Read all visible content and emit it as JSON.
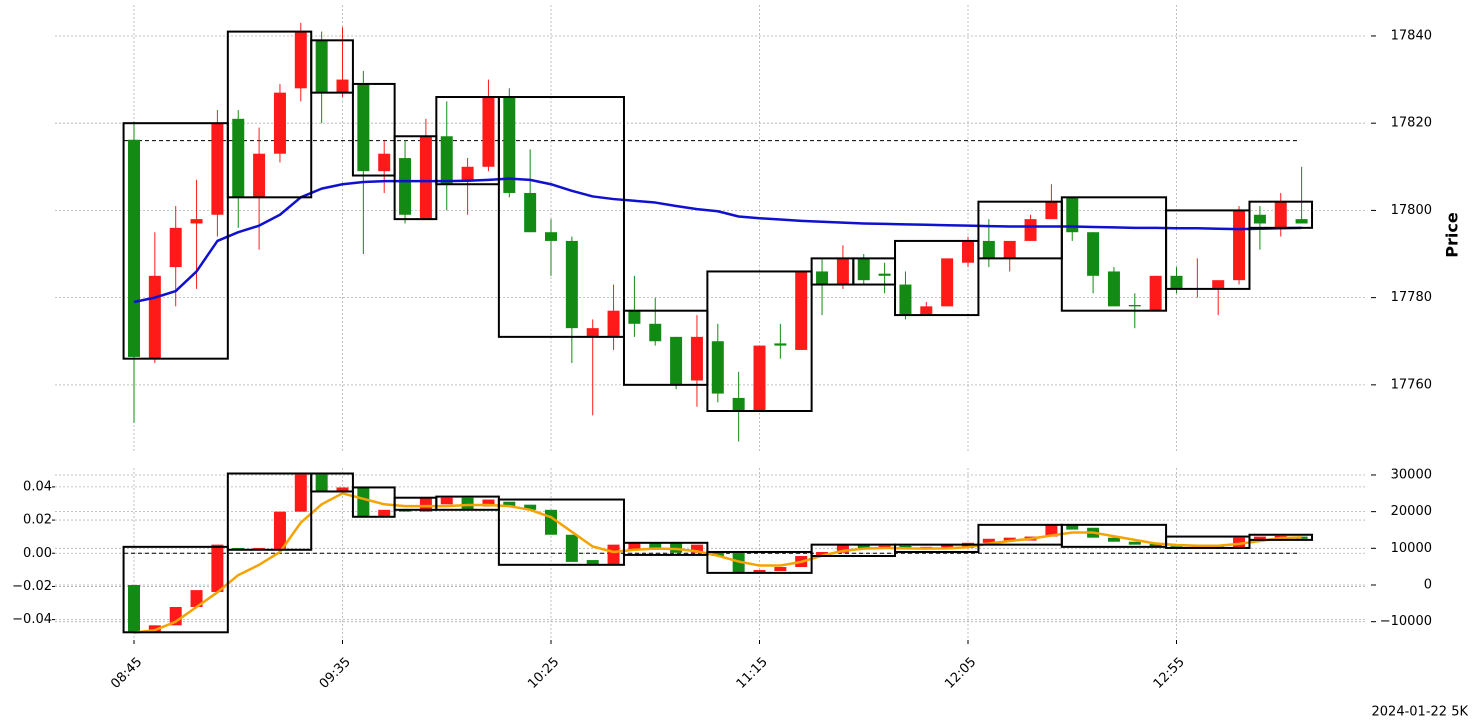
{
  "footnote": "2024-01-22 5K",
  "chart_data": [
    {
      "type": "candlestick",
      "ylabel": "Price",
      "grid": true,
      "y_axis_side": "right",
      "ylim": [
        17744.6,
        17847.1
      ],
      "yticks": [
        17760,
        17780,
        17800,
        17820,
        17840
      ],
      "up_color": "#ff1a1a",
      "down_color": "#138a13",
      "open": [
        17816.2,
        17766,
        17787,
        17797,
        17799,
        17821,
        17803,
        17813,
        17828,
        17839,
        17827,
        17829,
        17809,
        17812,
        17798,
        17817,
        17807,
        17810,
        17826,
        17804,
        17795,
        17793,
        17771,
        17771,
        17777,
        17774,
        17771,
        17761,
        17770,
        17757,
        17754,
        17769.5,
        17768,
        17786,
        17783,
        17789,
        17785.5,
        17783,
        17776,
        17778,
        17788,
        17793,
        17789,
        17793,
        17798,
        17803,
        17795,
        17786,
        17778.3,
        17777,
        17785,
        17782,
        17782,
        17784,
        17799,
        17796,
        17798
      ],
      "high": [
        17820.3,
        17795,
        17801,
        17807,
        17823,
        17823,
        17819,
        17829,
        17843,
        17841,
        17842,
        17832,
        17816,
        17816,
        17821,
        17825,
        17812,
        17830,
        17828,
        17814,
        17798,
        17794,
        17775,
        17783,
        17785,
        17780,
        17771,
        17776,
        17774,
        17763,
        17769,
        17774,
        17786,
        17789,
        17792,
        17790,
        17788,
        17786,
        17779,
        17789,
        17794,
        17798,
        17793,
        17799,
        17806,
        17803,
        17795,
        17787,
        17781,
        17785,
        17787,
        17789,
        17784,
        17801,
        17801,
        17804,
        17810
      ],
      "low": [
        17751.3,
        17765,
        17778,
        17782,
        17794,
        17796,
        17791,
        17811,
        17825,
        17820,
        17826,
        17790,
        17804,
        17797,
        17798,
        17800,
        17799,
        17809,
        17803,
        17795,
        17785,
        17765,
        17753,
        17768,
        17771,
        17769,
        17759,
        17755,
        17756,
        17747,
        17754,
        17766,
        17768,
        17776,
        17782,
        17783,
        17781,
        17775,
        17776,
        17778,
        17787,
        17787,
        17786,
        17793,
        17798,
        17793,
        17781,
        17778,
        17773,
        17777,
        17781,
        17780,
        17776,
        17783,
        17791,
        17794,
        17797
      ],
      "close": [
        17766.4,
        17785,
        17796,
        17798,
        17820,
        17803,
        17813,
        17827,
        17841,
        17827,
        17830,
        17809,
        17813,
        17799,
        17817,
        17806,
        17810,
        17826,
        17804,
        17795,
        17793,
        17773,
        17773,
        17777,
        17774,
        17770,
        17760,
        17771,
        17758,
        17754,
        17769,
        17769,
        17786,
        17783,
        17789,
        17784,
        17785,
        17776,
        17778,
        17789,
        17793,
        17789,
        17793,
        17798,
        17802,
        17795,
        17785,
        17778,
        17778,
        17785,
        17782,
        17782.2,
        17784,
        17800,
        17797,
        17802,
        17797
      ],
      "line": {
        "color": "#1010d0",
        "values": [
          17779,
          17780,
          17781.5,
          17786,
          17793,
          17795,
          17796.5,
          17799,
          17803,
          17805,
          17806,
          17806.5,
          17806.7,
          17806.7,
          17806.7,
          17806.7,
          17806.8,
          17807,
          17807.3,
          17807,
          17806,
          17804.5,
          17803.2,
          17802.6,
          17802.2,
          17801.8,
          17801,
          17800.3,
          17799.8,
          17798.6,
          17798.2,
          17797.9,
          17797.6,
          17797.4,
          17797.2,
          17797,
          17796.9,
          17796.8,
          17796.7,
          17796.6,
          17796.5,
          17796.4,
          17796.3,
          17796.3,
          17796.3,
          17796.3,
          17796.2,
          17796.1,
          17796,
          17796,
          17795.9,
          17795.9,
          17795.8,
          17795.7,
          17795.8,
          17795.9,
          17796
        ]
      },
      "boxes": {
        "color": "#000000",
        "start": [
          0,
          5,
          9,
          11,
          13,
          15,
          18,
          24,
          28,
          33,
          35,
          37,
          41,
          45,
          50,
          54
        ],
        "end": [
          4,
          8,
          10,
          12,
          14,
          17,
          23,
          27,
          32,
          34,
          36,
          40,
          44,
          49,
          53,
          56
        ],
        "high": [
          17820,
          17841,
          17839,
          17829,
          17817,
          17826,
          17826,
          17777,
          17786,
          17789,
          17789,
          17793,
          17802,
          17803,
          17800,
          17802
        ],
        "low": [
          17766,
          17803,
          17827,
          17808,
          17798,
          17806,
          17771,
          17760,
          17754,
          17783,
          17783,
          17776,
          17789,
          17777,
          17782,
          17796
        ]
      },
      "hline": 17816
    },
    {
      "type": "candlestick",
      "grid": true,
      "categories": [
        "08:45",
        null,
        null,
        null,
        null,
        null,
        null,
        null,
        null,
        null,
        "09:35",
        null,
        null,
        null,
        null,
        null,
        null,
        null,
        null,
        null,
        "10:25",
        null,
        null,
        null,
        null,
        null,
        null,
        null,
        null,
        null,
        "11:15",
        null,
        null,
        null,
        null,
        null,
        null,
        null,
        null,
        null,
        "12:05",
        null,
        null,
        null,
        null,
        null,
        null,
        null,
        null,
        null,
        "12:55",
        null,
        null,
        null,
        null,
        null,
        null
      ],
      "ylim": [
        -0.0523,
        0.0514
      ],
      "yticks": [
        {
          "value": -0.04,
          "label": "−0.04"
        },
        {
          "value": -0.02,
          "label": "−0.02"
        },
        {
          "value": 0,
          "label": "0.00"
        },
        0.02,
        0.04
      ],
      "y2lim": [
        -15000,
        31900
      ],
      "y2ticks": [
        {
          "value": -10000,
          "label": "−10000"
        },
        0,
        10000,
        20000,
        30000
      ],
      "up_color": "#ff1a1a",
      "down_color": "#138a13",
      "axis": "y2",
      "open": [
        0,
        -12900,
        -11000,
        -6000,
        -1900,
        10100,
        9600,
        9600,
        20000,
        30100,
        25500,
        26600,
        18600,
        20500,
        20000,
        22000,
        23800,
        21400,
        22700,
        21900,
        20500,
        13700,
        6800,
        5500,
        9600,
        11500,
        11500,
        8800,
        8800,
        8800,
        3300,
        3800,
        4900,
        7700,
        8800,
        11000,
        10100,
        10700,
        9900,
        10100,
        10100,
        11500,
        12100,
        12100,
        13200,
        16400,
        15600,
        12900,
        11800,
        11200,
        11000,
        10400,
        11000,
        10100,
        12300,
        12600,
        13200
      ],
      "close": [
        -12900,
        -11000,
        -6000,
        -1400,
        11000,
        9600,
        10100,
        20000,
        30100,
        25500,
        26600,
        18600,
        20500,
        20000,
        23800,
        23800,
        20500,
        23300,
        21400,
        20500,
        13700,
        6300,
        5500,
        11000,
        11500,
        10100,
        8800,
        11000,
        7900,
        3300,
        4100,
        4900,
        7900,
        9000,
        11000,
        10100,
        10700,
        9900,
        10400,
        11000,
        11500,
        12600,
        12900,
        13200,
        16400,
        15100,
        12900,
        11800,
        11000,
        10400,
        10400,
        11000,
        10400,
        12900,
        13200,
        13400,
        12600
      ],
      "line": {
        "color": "#f5a300",
        "axis": "y2",
        "values": [
          -13000,
          -12300,
          -10000,
          -6000,
          -2000,
          2700,
          5500,
          9000,
          17000,
          22000,
          25000,
          23500,
          22000,
          21500,
          21500,
          21500,
          21800,
          21800,
          21500,
          20500,
          18500,
          14500,
          10500,
          9000,
          9600,
          9900,
          9800,
          9200,
          8000,
          6400,
          5300,
          5300,
          6300,
          8000,
          9300,
          9900,
          10100,
          10000,
          9900,
          10000,
          10300,
          11300,
          12000,
          12600,
          13500,
          14300,
          14300,
          13300,
          12300,
          11300,
          10900,
          10700,
          10700,
          11200,
          12000,
          12800,
          13000
        ]
      },
      "boxes": {
        "color": "#000000",
        "axis": "y2",
        "start": [
          0,
          5,
          9,
          11,
          13,
          15,
          18,
          24,
          28,
          33,
          37,
          41,
          45,
          50,
          54
        ],
        "end": [
          4,
          8,
          10,
          12,
          14,
          17,
          23,
          27,
          32,
          36,
          40,
          44,
          49,
          53,
          56
        ],
        "high": [
          10400,
          30400,
          30400,
          26600,
          23800,
          24100,
          23300,
          11500,
          9000,
          11000,
          11000,
          16400,
          16400,
          13200,
          13700
        ],
        "low": [
          -12900,
          9600,
          25500,
          18600,
          20500,
          20500,
          5500,
          8200,
          3300,
          7900,
          9000,
          11000,
          10400,
          10100,
          12300
        ]
      },
      "hline": 0
    }
  ]
}
